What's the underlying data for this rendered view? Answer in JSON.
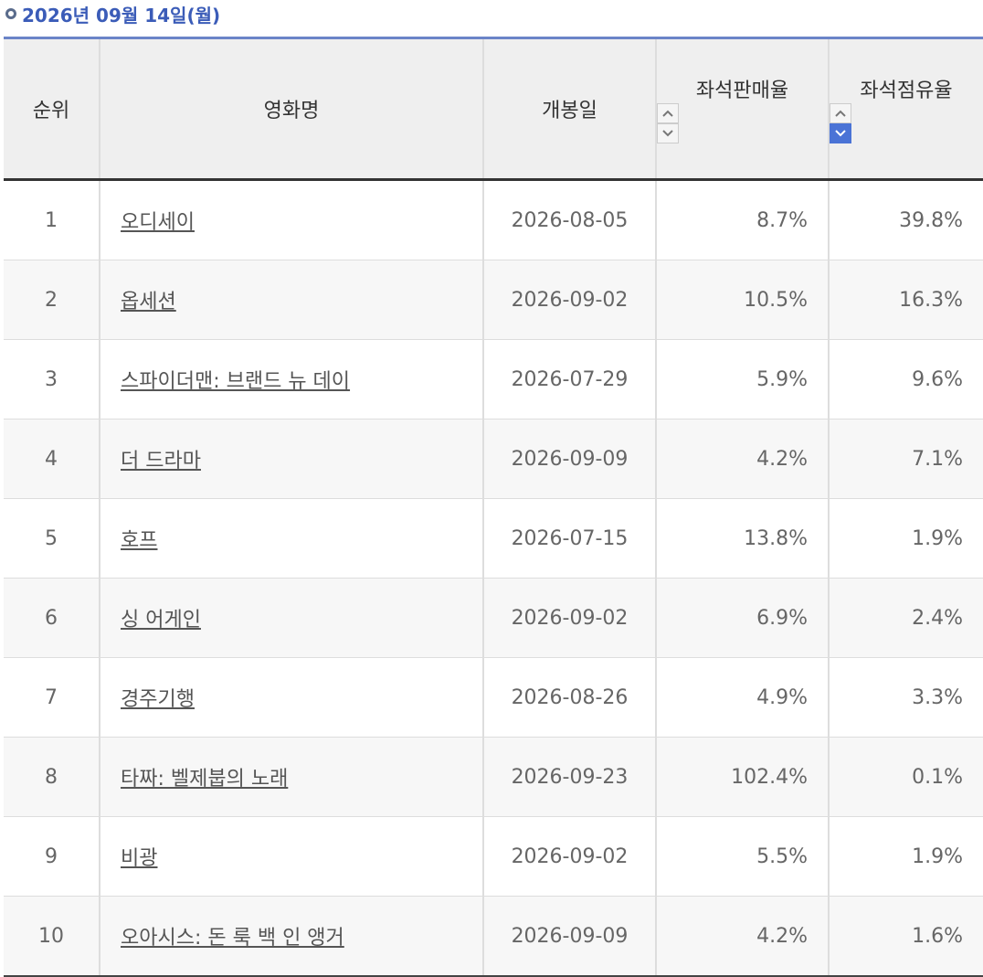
{
  "header": {
    "title": "2026년 09월 14일(월)"
  },
  "table": {
    "columns": [
      "순위",
      "영화명",
      "개봉일",
      "좌석판매율",
      "좌석점유율"
    ],
    "rows": [
      [
        1,
        "오디세이",
        "2026-08-05",
        "8.7%",
        "39.8%"
      ],
      [
        2,
        "옵세션",
        "2026-09-02",
        "10.5%",
        "16.3%"
      ],
      [
        3,
        "스파이더맨: 브랜드 뉴 데이",
        "2026-07-29",
        "5.9%",
        "9.6%"
      ],
      [
        4,
        "더 드라마",
        "2026-09-09",
        "4.2%",
        "7.1%"
      ],
      [
        5,
        "호프",
        "2026-07-15",
        "13.8%",
        "1.9%"
      ],
      [
        6,
        "싱 어게인",
        "2026-09-02",
        "6.9%",
        "2.4%"
      ],
      [
        7,
        "경주기행",
        "2026-08-26",
        "4.9%",
        "3.3%"
      ],
      [
        8,
        "타짜: 벨제붑의 노래",
        "2026-09-23",
        "102.4%",
        "0.1%"
      ],
      [
        9,
        "비광",
        "2026-09-02",
        "5.5%",
        "1.9%"
      ],
      [
        10,
        "오아시스: 돈 룩 백 인 앵거",
        "2026-09-09",
        "4.2%",
        "1.6%"
      ]
    ]
  }
}
